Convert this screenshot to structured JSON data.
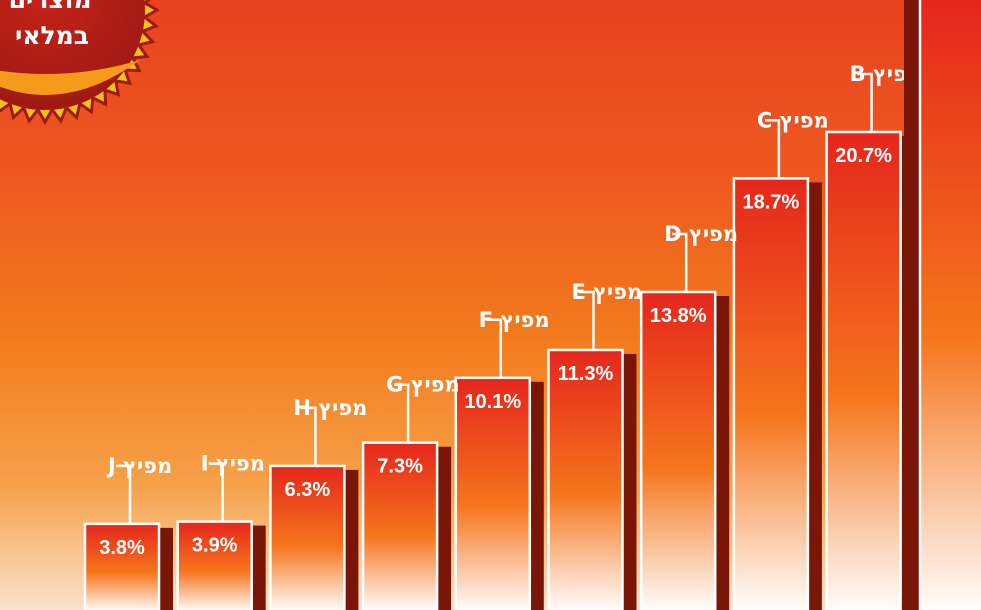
{
  "badge": {
    "line1": "מוצרים",
    "line2": "במלאי"
  },
  "colors": {
    "bar_top": "#e5261c",
    "bar_bottom": "#ffffff",
    "bar_border": "#ffffff",
    "bar_shadow": "#7a1608",
    "badge_fill": "#9e1a14",
    "badge_accent": "#f59a1a"
  },
  "chart_data": {
    "type": "bar",
    "categories": [
      "מפיץ J",
      "מפיץ I",
      "מפיץ H",
      "מפיץ G",
      "מפיץ F",
      "מפיץ E",
      "מפיץ D",
      "מפיץ C",
      "מפיץ B"
    ],
    "values": [
      3.8,
      3.9,
      6.3,
      7.3,
      10.1,
      11.3,
      13.8,
      18.7,
      20.7
    ],
    "value_labels": [
      "3.8%",
      "3.9%",
      "6.3%",
      "7.3%",
      "10.1%",
      "11.3%",
      "13.8%",
      "18.7%",
      "20.7%"
    ],
    "unit": "%",
    "title": "",
    "xlabel": "",
    "ylabel": "",
    "grid": false,
    "legend": "none"
  }
}
